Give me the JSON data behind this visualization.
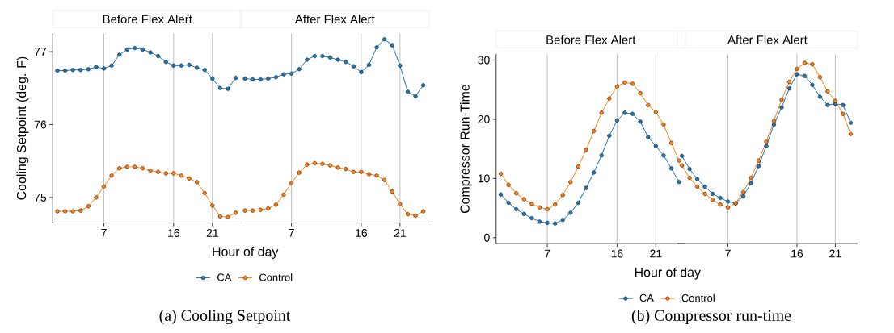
{
  "chart_data": [
    {
      "type": "line",
      "title": "Before Flex Alert",
      "xlabel": "Hour of day",
      "ylabel": "Cooling Setpoint (deg. F)",
      "x": [
        1,
        2,
        3,
        4,
        5,
        6,
        7,
        8,
        9,
        10,
        11,
        12,
        13,
        14,
        15,
        16,
        17,
        18,
        19,
        20,
        21,
        22,
        23,
        24
      ],
      "xlim": [
        0.4,
        24.8
      ],
      "xticks": [
        7,
        16,
        21
      ],
      "ylim": [
        74.65,
        77.25
      ],
      "yticks": [
        75,
        76,
        77
      ],
      "grid": "x",
      "marker": "circle",
      "legend": "bottom",
      "annotations": [
        "(a) Cooling Setpoint"
      ],
      "series": [
        {
          "name": "CA",
          "color": "#1f77b4",
          "values": [
            76.74,
            76.74,
            76.75,
            76.75,
            76.76,
            76.79,
            76.77,
            76.81,
            76.96,
            77.03,
            77.05,
            77.03,
            76.99,
            76.94,
            76.86,
            76.81,
            76.81,
            76.82,
            76.78,
            76.75,
            76.63,
            76.5,
            76.49,
            76.64
          ]
        },
        {
          "name": "Control",
          "color": "#ff7f0e",
          "values": [
            74.81,
            74.81,
            74.81,
            74.82,
            74.88,
            75.0,
            75.15,
            75.3,
            75.4,
            75.42,
            75.42,
            75.4,
            75.37,
            75.35,
            75.33,
            75.33,
            75.3,
            75.26,
            75.21,
            75.06,
            74.89,
            74.74,
            74.73,
            74.79
          ]
        }
      ]
    },
    {
      "type": "line",
      "title": "After Flex Alert",
      "x": [
        1,
        2,
        3,
        4,
        5,
        6,
        7,
        8,
        9,
        10,
        11,
        12,
        13,
        14,
        15,
        16,
        17,
        18,
        19,
        20,
        21,
        22,
        23,
        24
      ],
      "xlim": [
        0.4,
        24.8
      ],
      "xticks": [
        7,
        16,
        21
      ],
      "ylim": [
        74.65,
        77.25
      ],
      "yticks": [
        75,
        76,
        77
      ],
      "tick_labels": "x",
      "grid": "x",
      "marker": "circle",
      "series": [
        {
          "color": "#1f77b4",
          "values": [
            76.63,
            76.62,
            76.62,
            76.63,
            76.65,
            76.69,
            76.7,
            76.76,
            76.89,
            76.94,
            76.94,
            76.92,
            76.89,
            76.86,
            76.8,
            76.72,
            76.82,
            77.06,
            77.17,
            77.09,
            76.81,
            76.45,
            76.39,
            76.54
          ]
        },
        {
          "color": "#ff7f0e",
          "values": [
            74.82,
            74.82,
            74.83,
            74.85,
            74.9,
            75.04,
            75.2,
            75.34,
            75.45,
            75.47,
            75.46,
            75.44,
            75.41,
            75.39,
            75.35,
            75.35,
            75.32,
            75.3,
            75.24,
            75.08,
            74.91,
            74.77,
            74.75,
            74.81
          ]
        }
      ]
    },
    {
      "type": "line",
      "title": "Before Flex Alert",
      "xlabel": "Hour of day",
      "ylabel": "Compressor Run-Time",
      "x": [
        1,
        2,
        3,
        4,
        5,
        6,
        7,
        8,
        9,
        10,
        11,
        12,
        13,
        14,
        15,
        16,
        17,
        18,
        19,
        20,
        21,
        22,
        23,
        24
      ],
      "xlim": [
        0.4,
        24.8
      ],
      "xticks": [
        7,
        16,
        21
      ],
      "ylim": [
        -1,
        31
      ],
      "yticks": [
        0,
        10,
        20,
        30
      ],
      "grid": "x",
      "marker": "circle",
      "legend": "bottom",
      "annotations": [
        "(b) Compressor run-time"
      ],
      "series": [
        {
          "name": "CA",
          "color": "#1f77b4",
          "values": [
            7.3,
            5.9,
            4.8,
            4.0,
            3.3,
            2.7,
            2.5,
            2.4,
            3.0,
            4.2,
            5.9,
            8.4,
            11.0,
            13.9,
            17.2,
            19.8,
            21.1,
            20.9,
            19.6,
            17.0,
            15.5,
            13.9,
            11.7,
            9.4
          ]
        },
        {
          "name": "Control",
          "color": "#ff7f0e",
          "values": [
            10.8,
            8.9,
            7.5,
            6.5,
            5.7,
            5.1,
            4.8,
            5.6,
            7.2,
            9.4,
            12.0,
            14.8,
            18.0,
            21.1,
            23.5,
            25.5,
            26.2,
            26.0,
            24.4,
            22.4,
            21.2,
            19.1,
            16.0,
            13.0
          ]
        }
      ]
    },
    {
      "type": "line",
      "title": "After Flex Alert",
      "x": [
        1,
        2,
        3,
        4,
        5,
        6,
        7,
        8,
        9,
        10,
        11,
        12,
        13,
        14,
        15,
        16,
        17,
        18,
        19,
        20,
        21,
        22,
        23
      ],
      "xlim": [
        0.4,
        23.9
      ],
      "xticks": [
        7,
        16,
        21
      ],
      "ylim": [
        -1,
        31
      ],
      "yticks": [
        0,
        10,
        20,
        30
      ],
      "tick_labels": "x",
      "grid": "x",
      "marker": "circle",
      "series": [
        {
          "color": "#1f77b4",
          "values": [
            13.8,
            11.6,
            9.9,
            8.6,
            7.4,
            6.7,
            6.1,
            5.8,
            7.0,
            9.2,
            12.1,
            15.5,
            19.1,
            22.0,
            25.2,
            27.6,
            27.3,
            25.8,
            23.8,
            22.4,
            22.6,
            22.4,
            19.4
          ]
        },
        {
          "color": "#ff7f0e",
          "values": [
            12.2,
            10.1,
            8.6,
            7.4,
            6.4,
            5.6,
            5.1,
            5.8,
            7.7,
            10.1,
            13.0,
            16.2,
            19.7,
            23.3,
            26.3,
            28.5,
            29.5,
            29.3,
            27.1,
            24.7,
            23.1,
            20.9,
            17.5
          ]
        }
      ]
    }
  ]
}
